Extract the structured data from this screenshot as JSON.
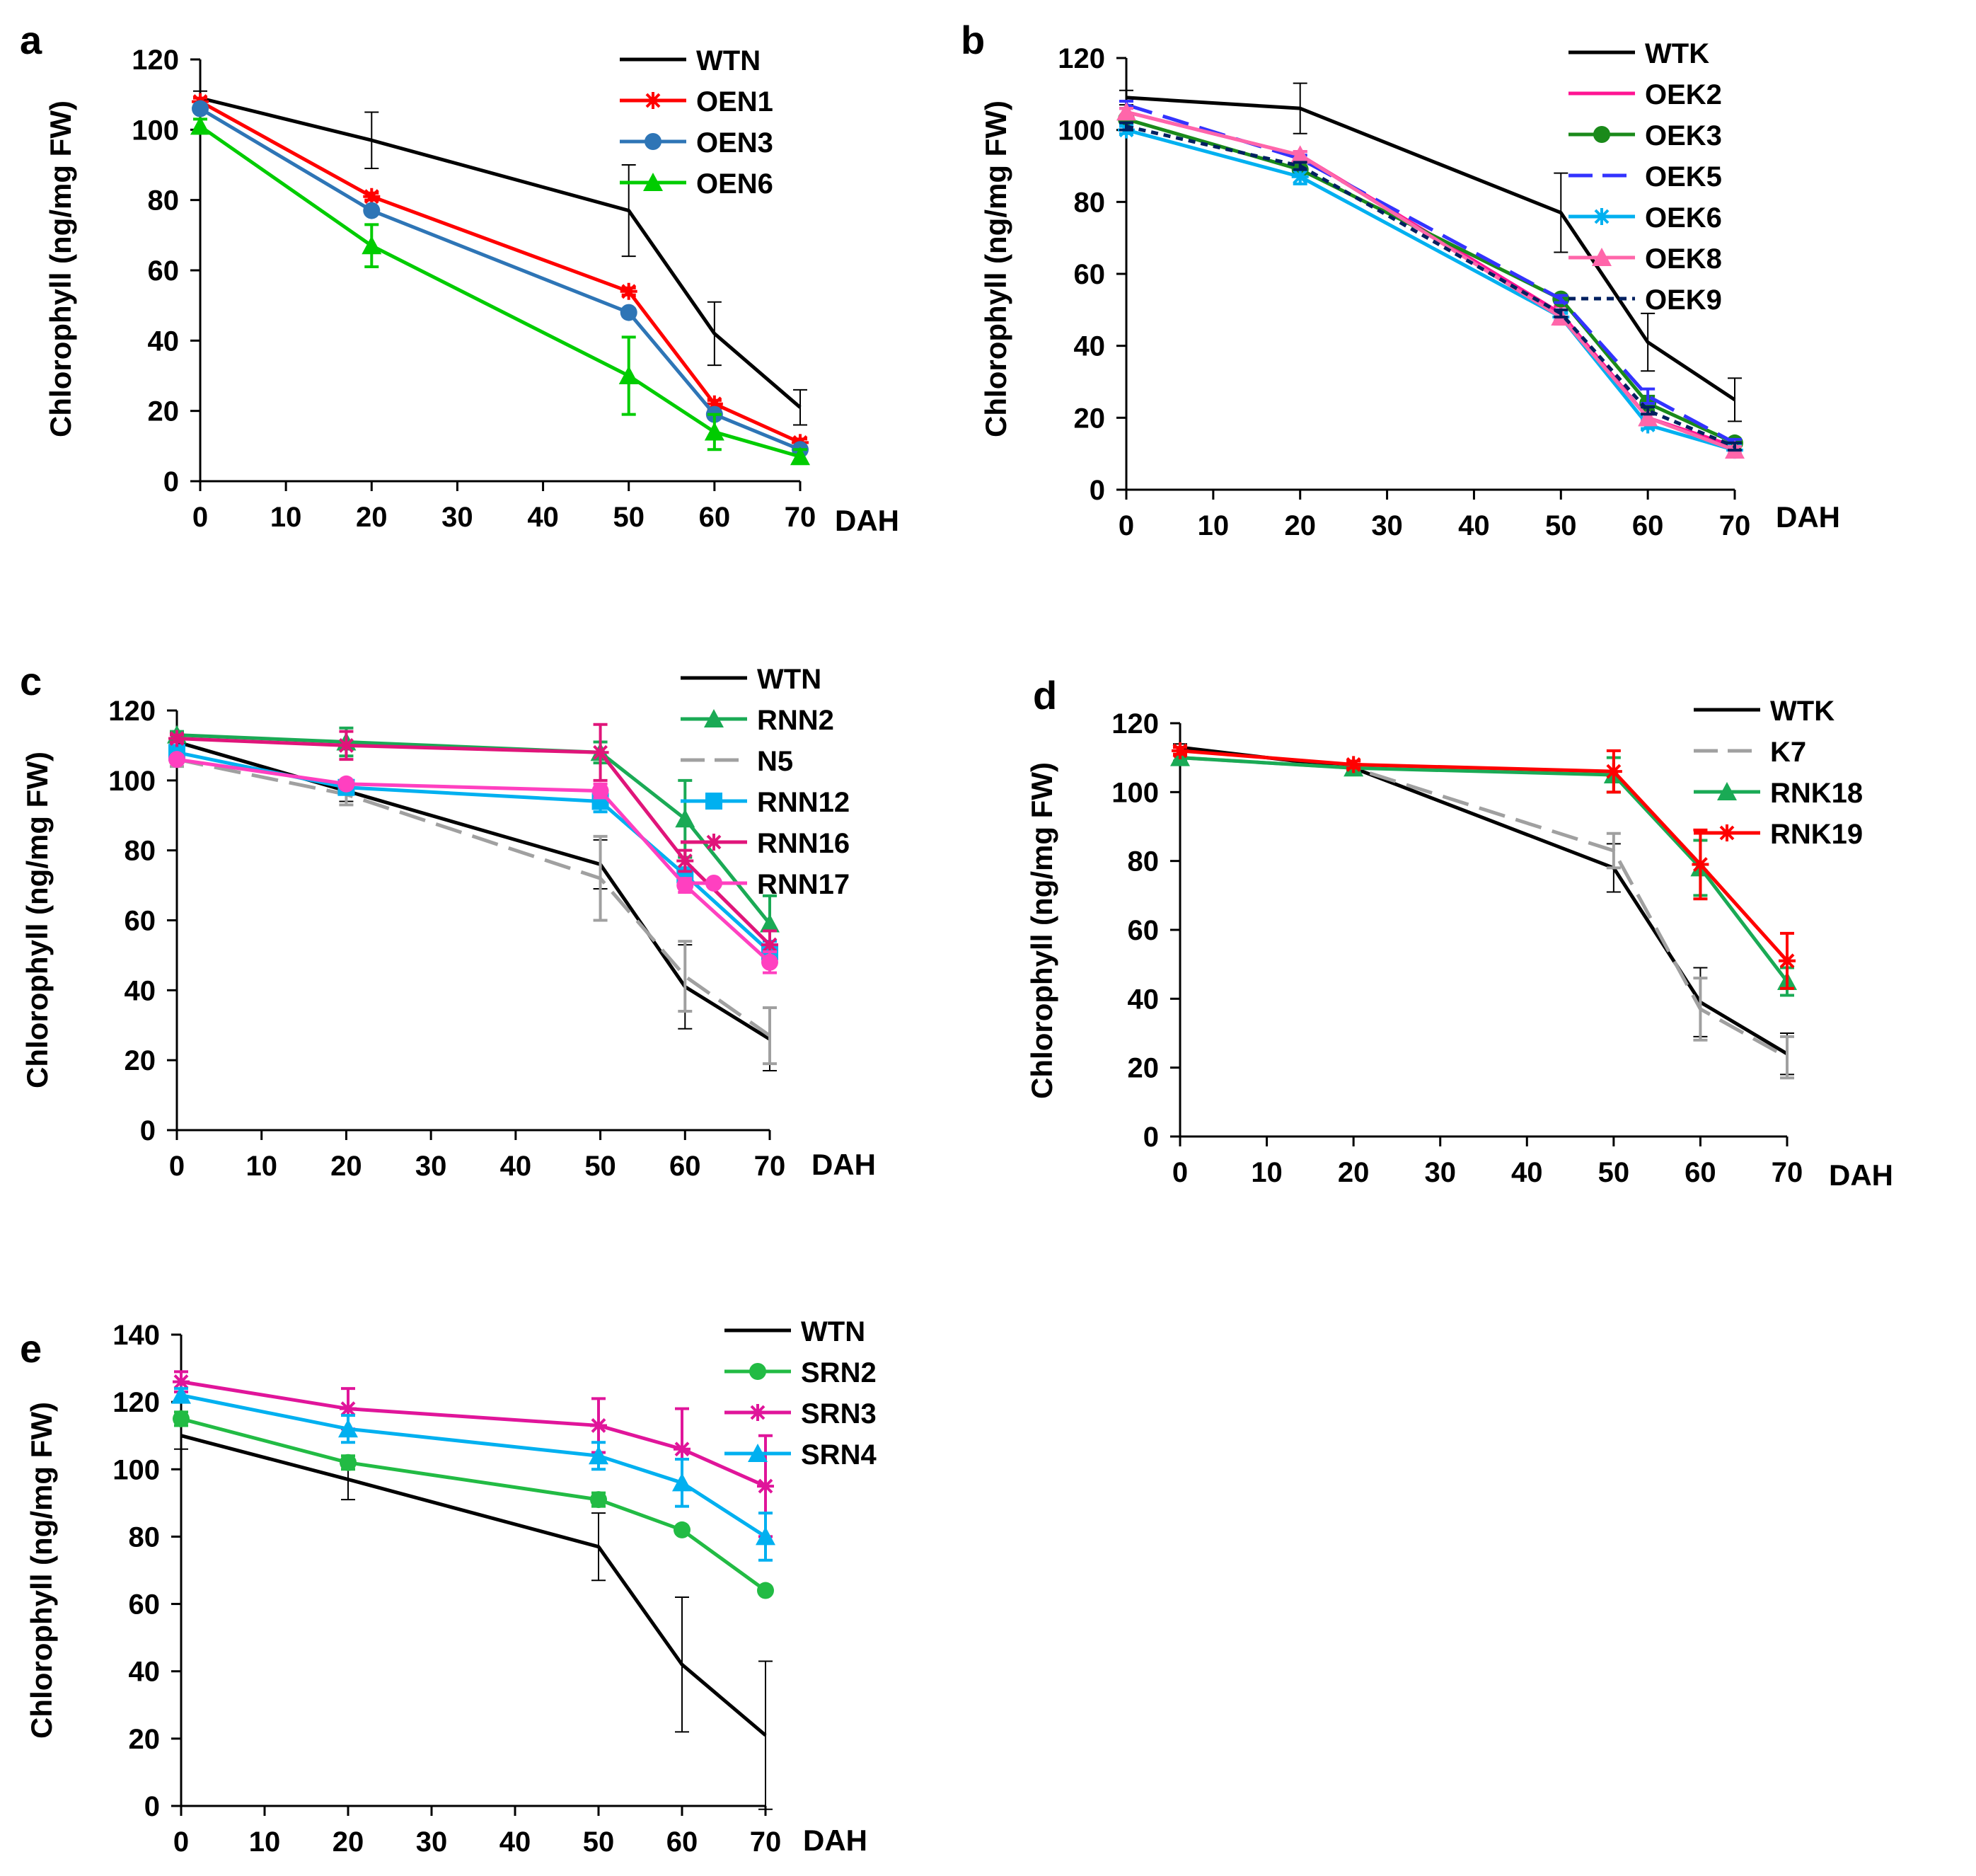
{
  "chart_data": [
    {
      "panel_label": "a",
      "type": "line",
      "x": [
        0,
        20,
        50,
        60,
        70
      ],
      "xticks": [
        0,
        10,
        20,
        30,
        40,
        50,
        60,
        70
      ],
      "xlim": [
        0,
        70
      ],
      "ylim": [
        0,
        120
      ],
      "yticks": [
        0,
        20,
        40,
        60,
        80,
        100,
        120
      ],
      "ylabel": "Chlorophyll (ng/mg FW)",
      "xlabel": "DAH",
      "series": [
        {
          "name": "WTN",
          "color": "#000000",
          "marker": "none",
          "dash": "solid",
          "values": [
            109,
            97,
            77,
            42,
            21
          ],
          "errors": [
            2,
            8,
            13,
            9,
            5
          ]
        },
        {
          "name": "OEN1",
          "color": "#ff0000",
          "marker": "star",
          "dash": "solid",
          "values": [
            108,
            81,
            54,
            22,
            11
          ],
          "errors": [
            1,
            1,
            1,
            1,
            1
          ]
        },
        {
          "name": "OEN3",
          "color": "#2e75b6",
          "marker": "circle",
          "dash": "solid",
          "values": [
            106,
            77,
            48,
            19,
            9
          ],
          "errors": [
            1,
            1,
            1,
            1,
            1
          ]
        },
        {
          "name": "OEN6",
          "color": "#00cc00",
          "marker": "triangle",
          "dash": "solid",
          "values": [
            101,
            67,
            30,
            14,
            7
          ],
          "errors": [
            2,
            6,
            11,
            5,
            2
          ]
        }
      ]
    },
    {
      "panel_label": "b",
      "type": "line",
      "x": [
        0,
        20,
        50,
        60,
        70
      ],
      "xticks": [
        0,
        10,
        20,
        30,
        40,
        50,
        60,
        70
      ],
      "xlim": [
        0,
        70
      ],
      "ylim": [
        0,
        120
      ],
      "yticks": [
        0,
        20,
        40,
        60,
        80,
        100,
        120
      ],
      "ylabel": "Chlorophyll (ng/mg FW)",
      "xlabel": "DAH",
      "series": [
        {
          "name": "WTK",
          "color": "#000000",
          "marker": "none",
          "dash": "solid",
          "values": [
            109,
            106,
            77,
            41,
            25
          ],
          "errors": [
            2,
            7,
            11,
            8,
            6
          ]
        },
        {
          "name": "OEK2",
          "color": "#ff1493",
          "marker": "none",
          "dash": "solid",
          "values": [
            105,
            93,
            49,
            20,
            12
          ],
          "errors": [
            1,
            1,
            2,
            1,
            1
          ]
        },
        {
          "name": "OEK3",
          "color": "#1a8a1a",
          "marker": "circle",
          "dash": "solid",
          "values": [
            103,
            89,
            53,
            24,
            13
          ],
          "errors": [
            1,
            1,
            1,
            2,
            1
          ]
        },
        {
          "name": "OEK5",
          "color": "#3333ff",
          "marker": "none",
          "dash": "long",
          "values": [
            107,
            92,
            53,
            26,
            13
          ],
          "errors": [
            1,
            1,
            1,
            2,
            1
          ]
        },
        {
          "name": "OEK6",
          "color": "#00b0f0",
          "marker": "star",
          "dash": "solid",
          "values": [
            100,
            87,
            48,
            18,
            11
          ],
          "errors": [
            1,
            2,
            1,
            1,
            1
          ]
        },
        {
          "name": "OEK8",
          "color": "#ff66aa",
          "marker": "triangle",
          "dash": "solid",
          "values": [
            105,
            93,
            48,
            20,
            11
          ],
          "errors": [
            1,
            1,
            2,
            1,
            1
          ]
        },
        {
          "name": "OEK9",
          "color": "#002060",
          "marker": "none",
          "dash": "dot",
          "values": [
            101,
            90,
            49,
            22,
            12
          ],
          "errors": [
            1,
            1,
            1,
            1,
            1
          ]
        }
      ]
    },
    {
      "panel_label": "c",
      "type": "line",
      "x": [
        0,
        20,
        50,
        60,
        70
      ],
      "xticks": [
        0,
        10,
        20,
        30,
        40,
        50,
        60,
        70
      ],
      "xlim": [
        0,
        70
      ],
      "ylim": [
        0,
        120
      ],
      "yticks": [
        0,
        20,
        40,
        60,
        80,
        100,
        120
      ],
      "ylabel": "Chlorophyll (ng/mg FW)",
      "xlabel": "DAH",
      "series": [
        {
          "name": "WTN",
          "color": "#000000",
          "marker": "none",
          "dash": "solid",
          "values": [
            111,
            97,
            76,
            41,
            26
          ],
          "errors": [
            2,
            3,
            7,
            12,
            9
          ]
        },
        {
          "name": "RNN2",
          "color": "#1aaa55",
          "marker": "triangle",
          "dash": "solid",
          "values": [
            113,
            111,
            108,
            89,
            59
          ],
          "errors": [
            1,
            4,
            3,
            11,
            8
          ]
        },
        {
          "name": "N5",
          "color": "#a0a0a0",
          "marker": "none",
          "dash": "long",
          "values": [
            106,
            96,
            72,
            44,
            27
          ],
          "errors": [
            2,
            3,
            12,
            10,
            8
          ]
        },
        {
          "name": "RNN12",
          "color": "#00b0f0",
          "marker": "square",
          "dash": "solid",
          "values": [
            108,
            98,
            94,
            73,
            51
          ],
          "errors": [
            1,
            1,
            3,
            2,
            3
          ]
        },
        {
          "name": "RNN16",
          "color": "#e0157a",
          "marker": "star",
          "dash": "solid",
          "values": [
            112,
            110,
            108,
            77,
            53
          ],
          "errors": [
            1,
            4,
            8,
            3,
            4
          ]
        },
        {
          "name": "RNN17",
          "color": "#ff40c0",
          "marker": "circle",
          "dash": "solid",
          "values": [
            106,
            99,
            97,
            70,
            48
          ],
          "errors": [
            1,
            1,
            2,
            2,
            3
          ]
        }
      ]
    },
    {
      "panel_label": "d",
      "type": "line",
      "x": [
        0,
        20,
        50,
        60,
        70
      ],
      "xticks": [
        0,
        10,
        20,
        30,
        40,
        50,
        60,
        70
      ],
      "xlim": [
        0,
        70
      ],
      "ylim": [
        0,
        120
      ],
      "yticks": [
        0,
        20,
        40,
        60,
        80,
        100,
        120
      ],
      "ylabel": "Chlorophyll (ng/mg FW)",
      "xlabel": "DAH",
      "series": [
        {
          "name": "WTK",
          "color": "#000000",
          "marker": "none",
          "dash": "solid",
          "values": [
            113,
            107,
            78,
            39,
            24
          ],
          "errors": [
            1,
            1,
            7,
            10,
            6
          ]
        },
        {
          "name": "K7",
          "color": "#a0a0a0",
          "marker": "none",
          "dash": "long",
          "values": [
            110,
            107,
            83,
            37,
            23
          ],
          "errors": [
            1,
            1,
            5,
            9,
            6
          ]
        },
        {
          "name": "RNK18",
          "color": "#1aaa55",
          "marker": "triangle",
          "dash": "solid",
          "values": [
            110,
            107,
            105,
            78,
            45
          ],
          "errors": [
            1,
            1,
            5,
            8,
            4
          ]
        },
        {
          "name": "RNK19",
          "color": "#ff0000",
          "marker": "star",
          "dash": "solid",
          "values": [
            112,
            108,
            106,
            79,
            51
          ],
          "errors": [
            1,
            1,
            6,
            10,
            8
          ]
        }
      ]
    },
    {
      "panel_label": "e",
      "type": "line",
      "x": [
        0,
        20,
        50,
        60,
        70
      ],
      "xticks": [
        0,
        10,
        20,
        30,
        40,
        50,
        60,
        70
      ],
      "xlim": [
        0,
        70
      ],
      "ylim": [
        0,
        140
      ],
      "yticks": [
        0,
        20,
        40,
        60,
        80,
        100,
        120,
        140
      ],
      "ylabel": "Chlorophyll (ng/mg FW)",
      "xlabel": "DAH",
      "series": [
        {
          "name": "WTN",
          "color": "#000000",
          "marker": "none",
          "dash": "solid",
          "values": [
            110,
            97,
            77,
            42,
            21
          ],
          "errors": [
            4,
            6,
            10,
            20,
            22
          ]
        },
        {
          "name": "SRN2",
          "color": "#22bb44",
          "marker": "circle",
          "dash": "solid",
          "values": [
            115,
            102,
            91,
            82,
            64
          ],
          "errors": [
            2,
            2,
            2,
            1,
            1
          ]
        },
        {
          "name": "SRN3",
          "color": "#e0159a",
          "marker": "star",
          "dash": "solid",
          "values": [
            126,
            118,
            113,
            106,
            95
          ],
          "errors": [
            3,
            6,
            8,
            12,
            15
          ]
        },
        {
          "name": "SRN4",
          "color": "#00b0f0",
          "marker": "triangle",
          "dash": "solid",
          "values": [
            122,
            112,
            104,
            96,
            80
          ],
          "errors": [
            2,
            4,
            4,
            7,
            7
          ]
        }
      ]
    }
  ]
}
